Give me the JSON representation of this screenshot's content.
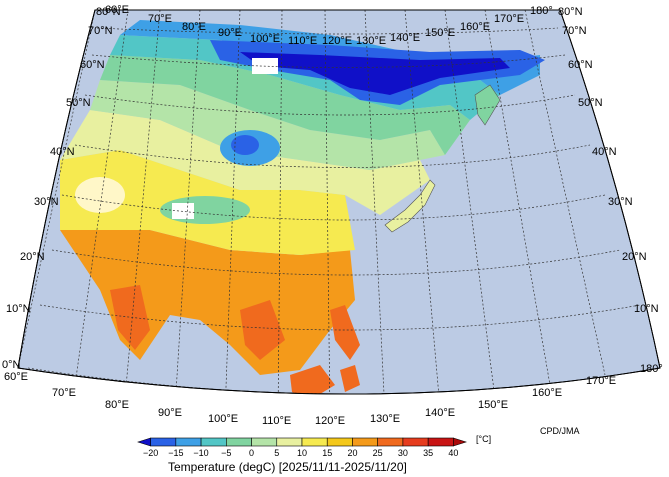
{
  "map": {
    "longitude_labels": [
      "60°E",
      "70°E",
      "80°E",
      "90°E",
      "100°E",
      "110°E",
      "120°E",
      "130°E",
      "140°E",
      "150°E",
      "160°E",
      "170°E",
      "180°"
    ],
    "latitude_labels": [
      "0°N",
      "10°N",
      "20°N",
      "30°N",
      "40°N",
      "50°N",
      "60°N",
      "70°N",
      "80°N"
    ],
    "ocean_color": "#bccbe4",
    "credit": "CPD/JMA"
  },
  "legend": {
    "title": "Temperature (degC) [2025/11/11-2025/11/20]",
    "unit": "[°C]",
    "tick_labels": [
      "−20",
      "−15",
      "−10",
      "−5",
      "0",
      "5",
      "10",
      "15",
      "20",
      "25",
      "30",
      "35",
      "40"
    ],
    "colors": [
      "#1010c8",
      "#2a62e6",
      "#3ea0e6",
      "#52c6c6",
      "#80d4a0",
      "#b4e4a8",
      "#e8f0a0",
      "#f6ea50",
      "#f4c81a",
      "#f49a1a",
      "#f06a1e",
      "#e63c1e",
      "#c81414",
      "#aa0a0a"
    ]
  }
}
